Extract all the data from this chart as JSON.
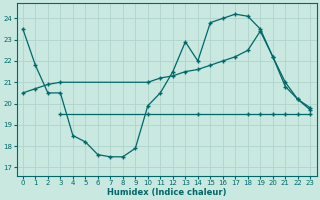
{
  "xlabel": "Humidex (Indice chaleur)",
  "bg_color": "#c8e8e0",
  "grid_color": "#b0d4cc",
  "line_color": "#006868",
  "xlim": [
    -0.5,
    23.5
  ],
  "ylim": [
    16.6,
    24.7
  ],
  "yticks": [
    17,
    18,
    19,
    20,
    21,
    22,
    23,
    24
  ],
  "xticks": [
    0,
    1,
    2,
    3,
    4,
    5,
    6,
    7,
    8,
    9,
    10,
    11,
    12,
    13,
    14,
    15,
    16,
    17,
    18,
    19,
    20,
    21,
    22,
    23
  ],
  "line1_x": [
    0,
    1,
    2,
    3,
    4,
    5,
    6,
    7,
    8,
    9,
    10,
    11,
    12,
    13,
    14,
    15,
    16,
    17,
    18,
    19,
    20,
    21,
    22,
    23
  ],
  "line1_y": [
    23.5,
    21.8,
    20.5,
    20.5,
    18.5,
    18.2,
    17.6,
    17.5,
    17.5,
    17.9,
    19.9,
    20.5,
    21.5,
    22.9,
    22.0,
    23.8,
    24.0,
    24.2,
    24.1,
    23.5,
    22.2,
    20.8,
    20.2,
    19.8
  ],
  "line2_x": [
    3,
    10,
    14,
    18,
    19,
    20,
    21,
    22,
    23
  ],
  "line2_y": [
    19.5,
    19.5,
    19.5,
    19.5,
    19.5,
    19.5,
    19.5,
    19.5,
    19.5
  ],
  "line3_x": [
    0,
    1,
    2,
    3,
    10,
    11,
    12,
    13,
    14,
    15,
    16,
    17,
    18,
    19,
    20,
    21,
    22,
    23
  ],
  "line3_y": [
    20.5,
    20.7,
    20.9,
    21.0,
    21.0,
    21.2,
    21.3,
    21.5,
    21.6,
    21.8,
    22.0,
    22.2,
    22.5,
    23.4,
    22.2,
    21.0,
    20.2,
    19.7
  ]
}
